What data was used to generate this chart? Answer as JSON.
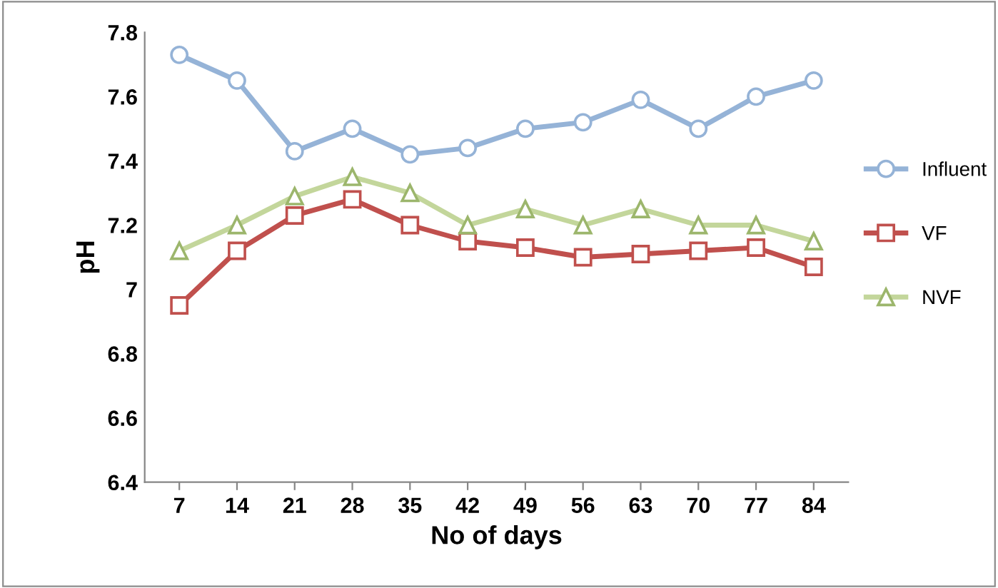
{
  "chart_data": {
    "type": "line",
    "xlabel": "No of days",
    "ylabel": "pH",
    "categories": [
      "7",
      "14",
      "21",
      "28",
      "35",
      "42",
      "49",
      "56",
      "63",
      "70",
      "77",
      "84"
    ],
    "series": [
      {
        "name": "Influent",
        "color": "#95b3d7",
        "marker": "circle",
        "values": [
          7.73,
          7.65,
          7.43,
          7.5,
          7.42,
          7.44,
          7.5,
          7.52,
          7.59,
          7.5,
          7.6,
          7.65
        ]
      },
      {
        "name": "VF",
        "color": "#c0504d",
        "marker": "square",
        "values": [
          6.95,
          7.12,
          7.23,
          7.28,
          7.2,
          7.15,
          7.13,
          7.1,
          7.11,
          7.12,
          7.13,
          7.07
        ]
      },
      {
        "name": "NVF",
        "color": "#c3d69b",
        "marker": "triangle",
        "values": [
          7.12,
          7.2,
          7.29,
          7.35,
          7.3,
          7.2,
          7.25,
          7.2,
          7.25,
          7.2,
          7.2,
          7.15
        ]
      }
    ],
    "ylim": [
      6.4,
      7.8
    ],
    "yticks": [
      {
        "value": 6.4,
        "label": "6.4"
      },
      {
        "value": 6.6,
        "label": "6.6"
      },
      {
        "value": 6.8,
        "label": "6.8"
      },
      7,
      {
        "value": 7.2,
        "label": "7.2"
      },
      {
        "value": 7.4,
        "label": "7.4"
      },
      {
        "value": 7.6,
        "label": "7.6"
      },
      {
        "value": 7.8,
        "label": "7.8"
      }
    ],
    "grid": false,
    "legend": "right",
    "line_style": "solid"
  }
}
